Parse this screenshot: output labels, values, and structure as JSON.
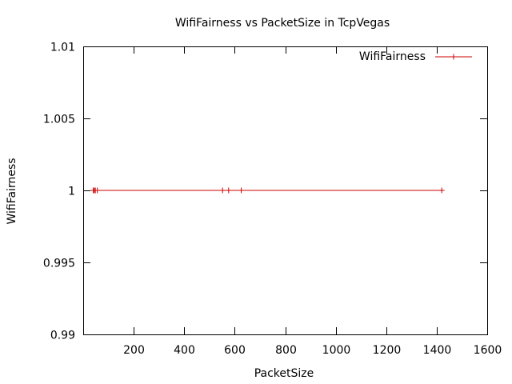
{
  "chart_data": {
    "type": "line",
    "title": "WifiFairness vs PacketSize in TcpVegas",
    "xlabel": "PacketSize",
    "ylabel": "WifiFairness",
    "xlim": [
      0,
      1600
    ],
    "ylim": [
      0.99,
      1.01
    ],
    "x_ticks": [
      200,
      400,
      600,
      800,
      1000,
      1200,
      1400,
      1600
    ],
    "x_tick_labels": [
      "200",
      "400",
      "600",
      "800",
      "1000",
      "1200",
      "1400",
      "1600"
    ],
    "y_ticks": [
      0.99,
      0.995,
      1.0,
      1.005,
      1.01
    ],
    "y_tick_labels": [
      "0.99",
      "0.995",
      "1",
      "1.005",
      "1.01"
    ],
    "grid": false,
    "legend_position": "top-right",
    "series": [
      {
        "name": "WifiFairness",
        "color": "#cc0000",
        "marker": "plus",
        "x": [
          40,
          44,
          48,
          56,
          552,
          576,
          626,
          1420
        ],
        "y": [
          1,
          1,
          1,
          1,
          1,
          1,
          1,
          1
        ]
      }
    ]
  }
}
